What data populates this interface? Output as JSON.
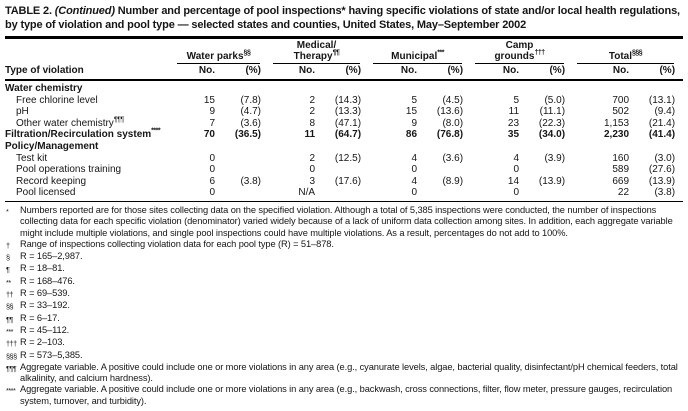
{
  "title": {
    "label": "TABLE 2.",
    "continued": "(Continued)",
    "rest": "Number and percentage of pool inspections* having specific violations of state and/or local health regulations, by type of violation and pool type — selected states and counties, United States, May–September 2002"
  },
  "table": {
    "row_header": "Type of violation",
    "sub_no": "No.",
    "sub_pct": "(%)",
    "groups": [
      {
        "top": "",
        "label": "Water parks",
        "sup": "§§"
      },
      {
        "top": "Medical/",
        "label": "Therapy",
        "sup": "¶¶"
      },
      {
        "top": "",
        "label": "Municipal",
        "sup": "***"
      },
      {
        "top": "Camp",
        "label": "grounds",
        "sup": "†††"
      },
      {
        "top": "",
        "label": "Total",
        "sup": "§§§"
      }
    ],
    "rows": [
      {
        "type": "section",
        "label": "Water chemistry"
      },
      {
        "type": "data",
        "indent": true,
        "bold": false,
        "label": "Free chlorine level",
        "sup": "",
        "cells": [
          "15",
          "(7.8)",
          "2",
          "(14.3)",
          "5",
          "(4.5)",
          "5",
          "(5.0)",
          "700",
          "(13.1)"
        ]
      },
      {
        "type": "data",
        "indent": true,
        "bold": false,
        "label": "pH",
        "sup": "",
        "cells": [
          "9",
          "(4.7)",
          "2",
          "(13.3)",
          "15",
          "(13.6)",
          "11",
          "(11.1)",
          "502",
          "(9.4)"
        ]
      },
      {
        "type": "data",
        "indent": true,
        "bold": false,
        "label": "Other water chemistry",
        "sup": "¶¶¶",
        "cells": [
          "7",
          "(3.6)",
          "8",
          "(47.1)",
          "9",
          "(8.0)",
          "23",
          "(22.3)",
          "1,153",
          "(21.4)"
        ]
      },
      {
        "type": "data",
        "indent": false,
        "bold": true,
        "label": "Filtration/Recirculation system",
        "sup": "****",
        "cells": [
          "70",
          "(36.5)",
          "11",
          "(64.7)",
          "86",
          "(76.8)",
          "35",
          "(34.0)",
          "2,230",
          "(41.4)"
        ]
      },
      {
        "type": "section",
        "label": "Policy/Management"
      },
      {
        "type": "data",
        "indent": true,
        "bold": false,
        "label": "Test kit",
        "sup": "",
        "cells": [
          "0",
          "",
          "2",
          "(12.5)",
          "4",
          "(3.6)",
          "4",
          "(3.9)",
          "160",
          "(3.0)"
        ]
      },
      {
        "type": "data",
        "indent": true,
        "bold": false,
        "label": "Pool operations training",
        "sup": "",
        "cells": [
          "0",
          "",
          "0",
          "",
          "0",
          "",
          "0",
          "",
          "589",
          "(27.6)"
        ]
      },
      {
        "type": "data",
        "indent": true,
        "bold": false,
        "label": "Record keeping",
        "sup": "",
        "cells": [
          "6",
          "(3.8)",
          "3",
          "(17.6)",
          "4",
          "(8.9)",
          "14",
          "(13.9)",
          "669",
          "(13.9)"
        ]
      },
      {
        "type": "data",
        "indent": true,
        "bold": false,
        "label": "Pool licensed",
        "sup": "",
        "cells": [
          "0",
          "",
          "N/A",
          "",
          "0",
          "",
          "0",
          "",
          "22",
          "(3.8)"
        ]
      }
    ]
  },
  "footnotes": [
    {
      "marker": "*",
      "text": "Numbers reported are for those sites collecting data on the specified violation. Although a total of 5,385 inspections were conducted, the number of inspections collecting data for each specific violation (denominator) varied widely because of a lack of uniform data collection among sites. In addition, each aggregate variable might include multiple violations, and single pool inspections could have multiple violations. As a result, percentages do not add to 100%."
    },
    {
      "marker": "†",
      "text": "Range of inspections collecting violation data for each pool type (R) = 51–878."
    },
    {
      "marker": "§",
      "text": "R = 165–2,987."
    },
    {
      "marker": "¶",
      "text": "R = 18–81."
    },
    {
      "marker": "**",
      "text": "R = 168–476."
    },
    {
      "marker": "††",
      "text": "R = 69–539."
    },
    {
      "marker": "§§",
      "text": "R = 33–192."
    },
    {
      "marker": "¶¶",
      "text": "R = 6–17."
    },
    {
      "marker": "***",
      "text": "R = 45–112."
    },
    {
      "marker": "†††",
      "text": "R = 2–103."
    },
    {
      "marker": "§§§",
      "text": "R = 573–5,385."
    },
    {
      "marker": "¶¶¶",
      "text": "Aggregate variable. A positive could include one or more violations in any area (e.g., cyanurate levels, algae, bacterial quality, disinfectant/pH chemical feeders, total alkalinity, and calcium hardness)."
    },
    {
      "marker": "****",
      "text": "Aggregate variable. A positive could include one or more violations in any area (e.g., backwash, cross connections, filter, flow meter, pressure gauges, recirculation system, turnover, and turbidity)."
    }
  ]
}
